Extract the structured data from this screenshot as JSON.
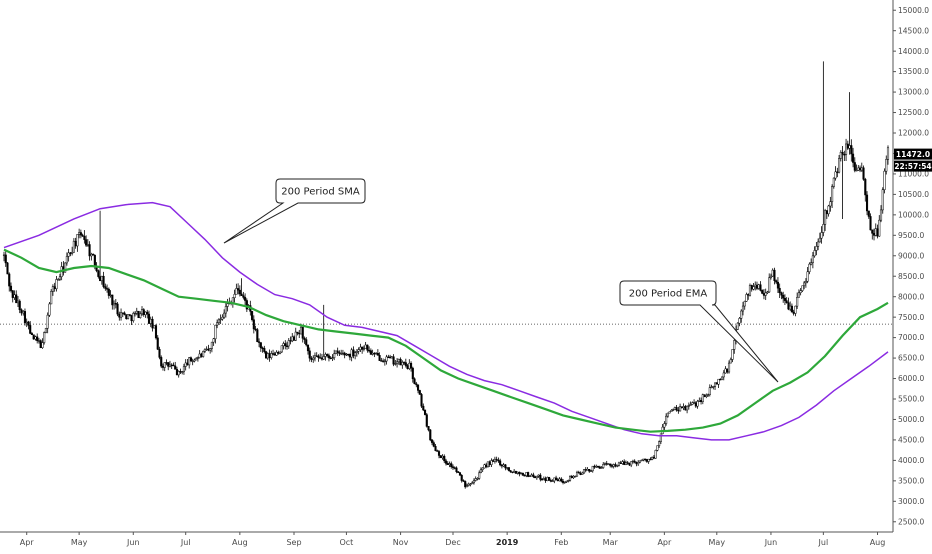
{
  "chart_data": {
    "type": "candlestick",
    "ylim": [
      2250,
      15250
    ],
    "y_ticks": [
      "2500.0",
      "3000.0",
      "3500.0",
      "4000.0",
      "4500.0",
      "5000.0",
      "5500.0",
      "6000.0",
      "6500.0",
      "7000.0",
      "7500.0",
      "8000.0",
      "8500.0",
      "9000.0",
      "9500.0",
      "10000.0",
      "10500.0",
      "11000.0",
      "11500.0",
      "12000.0",
      "12500.0",
      "13000.0",
      "13500.0",
      "14000.0",
      "14500.0",
      "15000.0"
    ],
    "x_ticks": [
      {
        "label": "Apr",
        "day": 13
      },
      {
        "label": "May",
        "day": 43
      },
      {
        "label": "Jun",
        "day": 74
      },
      {
        "label": "Jul",
        "day": 104
      },
      {
        "label": "Aug",
        "day": 135
      },
      {
        "label": "Sep",
        "day": 166
      },
      {
        "label": "Oct",
        "day": 196
      },
      {
        "label": "Nov",
        "day": 227
      },
      {
        "label": "Dec",
        "day": 257
      },
      {
        "label": "2019",
        "day": 288,
        "bold": true
      },
      {
        "label": "Feb",
        "day": 319
      },
      {
        "label": "Mar",
        "day": 347
      },
      {
        "label": "Apr",
        "day": 378
      },
      {
        "label": "May",
        "day": 408
      },
      {
        "label": "Jun",
        "day": 439
      },
      {
        "label": "Jul",
        "day": 469
      },
      {
        "label": "Aug",
        "day": 500
      }
    ],
    "last_day": 506,
    "price_keyframes": [
      [
        0,
        9000
      ],
      [
        4,
        8100
      ],
      [
        10,
        7700
      ],
      [
        16,
        7000
      ],
      [
        22,
        6800
      ],
      [
        27,
        8100
      ],
      [
        34,
        8700
      ],
      [
        40,
        9300
      ],
      [
        45,
        9550
      ],
      [
        50,
        9000
      ],
      [
        55,
        8500
      ],
      [
        60,
        8050
      ],
      [
        66,
        7600
      ],
      [
        72,
        7500
      ],
      [
        80,
        7650
      ],
      [
        86,
        7200
      ],
      [
        90,
        6350
      ],
      [
        96,
        6300
      ],
      [
        100,
        6100
      ],
      [
        105,
        6400
      ],
      [
        112,
        6550
      ],
      [
        118,
        6700
      ],
      [
        122,
        7400
      ],
      [
        128,
        7800
      ],
      [
        134,
        8200
      ],
      [
        140,
        7700
      ],
      [
        145,
        6950
      ],
      [
        150,
        6500
      ],
      [
        158,
        6700
      ],
      [
        165,
        6950
      ],
      [
        170,
        7200
      ],
      [
        175,
        6450
      ],
      [
        182,
        6500
      ],
      [
        190,
        6600
      ],
      [
        198,
        6600
      ],
      [
        206,
        6800
      ],
      [
        212,
        6550
      ],
      [
        218,
        6500
      ],
      [
        225,
        6400
      ],
      [
        232,
        6300
      ],
      [
        238,
        5550
      ],
      [
        245,
        4400
      ],
      [
        252,
        4000
      ],
      [
        258,
        3800
      ],
      [
        264,
        3400
      ],
      [
        270,
        3550
      ],
      [
        276,
        3900
      ],
      [
        282,
        4000
      ],
      [
        290,
        3750
      ],
      [
        300,
        3650
      ],
      [
        310,
        3550
      ],
      [
        320,
        3500
      ],
      [
        330,
        3700
      ],
      [
        340,
        3850
      ],
      [
        350,
        3900
      ],
      [
        360,
        3950
      ],
      [
        372,
        4050
      ],
      [
        380,
        5200
      ],
      [
        388,
        5250
      ],
      [
        396,
        5400
      ],
      [
        404,
        5700
      ],
      [
        410,
        6000
      ],
      [
        415,
        6300
      ],
      [
        420,
        7300
      ],
      [
        425,
        8100
      ],
      [
        430,
        8300
      ],
      [
        436,
        8100
      ],
      [
        440,
        8600
      ],
      [
        446,
        7900
      ],
      [
        452,
        7700
      ],
      [
        460,
        8600
      ],
      [
        466,
        9400
      ],
      [
        472,
        10300
      ],
      [
        478,
        11300
      ],
      [
        483,
        11700
      ],
      [
        487,
        11200
      ],
      [
        491,
        11100
      ],
      [
        496,
        9500
      ],
      [
        500,
        9600
      ],
      [
        506,
        11600
      ]
    ],
    "spikes": [
      [
        55,
        10100
      ],
      [
        136,
        8450
      ],
      [
        183,
        7800
      ],
      [
        469,
        13750
      ],
      [
        484,
        13000
      ],
      [
        480,
        9900
      ]
    ],
    "sma_200": [
      [
        0,
        9200
      ],
      [
        20,
        9500
      ],
      [
        40,
        9900
      ],
      [
        55,
        10150
      ],
      [
        70,
        10250
      ],
      [
        85,
        10300
      ],
      [
        95,
        10200
      ],
      [
        105,
        9800
      ],
      [
        115,
        9400
      ],
      [
        125,
        8950
      ],
      [
        135,
        8600
      ],
      [
        145,
        8300
      ],
      [
        155,
        8050
      ],
      [
        165,
        7950
      ],
      [
        175,
        7800
      ],
      [
        185,
        7500
      ],
      [
        195,
        7300
      ],
      [
        205,
        7250
      ],
      [
        215,
        7150
      ],
      [
        225,
        7050
      ],
      [
        235,
        6800
      ],
      [
        245,
        6550
      ],
      [
        255,
        6300
      ],
      [
        265,
        6100
      ],
      [
        275,
        5950
      ],
      [
        285,
        5850
      ],
      [
        295,
        5700
      ],
      [
        305,
        5550
      ],
      [
        315,
        5400
      ],
      [
        325,
        5200
      ],
      [
        335,
        5050
      ],
      [
        345,
        4900
      ],
      [
        355,
        4750
      ],
      [
        365,
        4650
      ],
      [
        375,
        4600
      ],
      [
        385,
        4600
      ],
      [
        395,
        4550
      ],
      [
        405,
        4500
      ],
      [
        415,
        4500
      ],
      [
        425,
        4600
      ],
      [
        435,
        4700
      ],
      [
        445,
        4850
      ],
      [
        455,
        5050
      ],
      [
        465,
        5350
      ],
      [
        475,
        5700
      ],
      [
        485,
        6000
      ],
      [
        495,
        6300
      ],
      [
        506,
        6650
      ]
    ],
    "ema_200": [
      [
        0,
        9150
      ],
      [
        10,
        8950
      ],
      [
        20,
        8700
      ],
      [
        30,
        8600
      ],
      [
        40,
        8700
      ],
      [
        50,
        8750
      ],
      [
        60,
        8700
      ],
      [
        70,
        8550
      ],
      [
        80,
        8400
      ],
      [
        90,
        8200
      ],
      [
        100,
        8000
      ],
      [
        110,
        7950
      ],
      [
        120,
        7900
      ],
      [
        130,
        7850
      ],
      [
        140,
        7750
      ],
      [
        150,
        7550
      ],
      [
        160,
        7400
      ],
      [
        170,
        7300
      ],
      [
        180,
        7200
      ],
      [
        190,
        7150
      ],
      [
        200,
        7100
      ],
      [
        210,
        7050
      ],
      [
        220,
        7000
      ],
      [
        230,
        6800
      ],
      [
        240,
        6500
      ],
      [
        250,
        6200
      ],
      [
        260,
        6000
      ],
      [
        270,
        5850
      ],
      [
        280,
        5700
      ],
      [
        290,
        5550
      ],
      [
        300,
        5400
      ],
      [
        310,
        5250
      ],
      [
        320,
        5100
      ],
      [
        330,
        5000
      ],
      [
        340,
        4900
      ],
      [
        350,
        4800
      ],
      [
        360,
        4750
      ],
      [
        370,
        4700
      ],
      [
        380,
        4720
      ],
      [
        390,
        4750
      ],
      [
        400,
        4800
      ],
      [
        410,
        4900
      ],
      [
        420,
        5100
      ],
      [
        430,
        5400
      ],
      [
        440,
        5700
      ],
      [
        450,
        5900
      ],
      [
        460,
        6150
      ],
      [
        470,
        6550
      ],
      [
        480,
        7050
      ],
      [
        490,
        7500
      ],
      [
        500,
        7700
      ],
      [
        506,
        7850
      ]
    ],
    "hline_price": 7330,
    "last_price": "11472.0",
    "countdown": "22:57:54",
    "annotations": [
      {
        "text": "200 Period SMA",
        "target": "sma_200"
      },
      {
        "text": "200 Period EMA",
        "target": "ema_200"
      }
    ],
    "colors": {
      "candle": "#000000",
      "sma": "#8a2be2",
      "ema": "#2ea83a",
      "axis": "#555555",
      "badge": "#000000"
    }
  }
}
